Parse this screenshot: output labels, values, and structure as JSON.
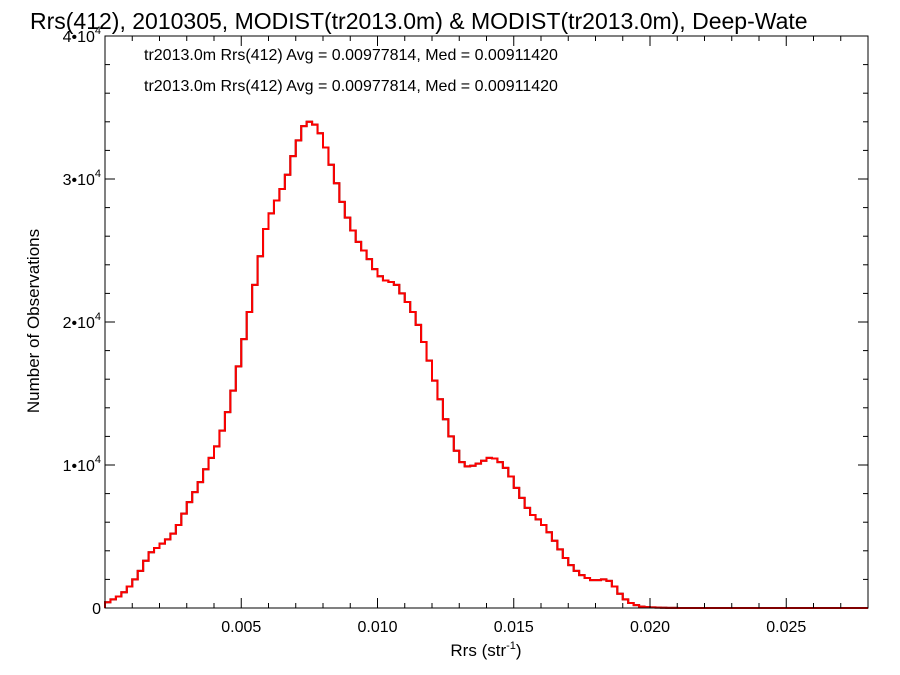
{
  "chart_data": {
    "type": "histogram",
    "title": "Rrs(412), 2010305, MODIST(tr2013.0m) & MODIST(tr2013.0m), Deep-Wate",
    "xlabel": "Rrs (str",
    "xlabel_sup": "-1",
    "xlabel_close": ")",
    "ylabel": "Number of Observations",
    "xlim": [
      0.0,
      0.028
    ],
    "ylim": [
      0,
      40000
    ],
    "x_ticks": [
      {
        "value": 0.005,
        "label": "0.005"
      },
      {
        "value": 0.01,
        "label": "0.010"
      },
      {
        "value": 0.015,
        "label": "0.015"
      },
      {
        "value": 0.02,
        "label": "0.020"
      },
      {
        "value": 0.025,
        "label": "0.025"
      }
    ],
    "y_ticks": [
      {
        "value": 0,
        "label": "0",
        "exp": ""
      },
      {
        "value": 10000,
        "label": "1•10",
        "exp": "4"
      },
      {
        "value": 20000,
        "label": "2•10",
        "exp": "4"
      },
      {
        "value": 30000,
        "label": "3•10",
        "exp": "4"
      },
      {
        "value": 40000,
        "label": "4•10",
        "exp": "4"
      }
    ],
    "annotations": [
      {
        "text": "tr2013.0m Rrs(412) Avg = 0.00977814, Med = 0.00911420",
        "color": "#000000"
      },
      {
        "text": "tr2013.0m Rrs(412) Avg = 0.00977814, Med = 0.00911420",
        "color": "#ff0000"
      }
    ],
    "bin_width": 0.0002,
    "series": [
      {
        "color": "#ff0000",
        "overlaid_color": "#000000",
        "x": [
          0.0,
          0.0002,
          0.0004,
          0.0006,
          0.0008,
          0.001,
          0.0012,
          0.0014,
          0.0016,
          0.0018,
          0.002,
          0.0022,
          0.0024,
          0.0026,
          0.0028,
          0.003,
          0.0032,
          0.0034,
          0.0036,
          0.0038,
          0.004,
          0.0042,
          0.0044,
          0.0046,
          0.0048,
          0.005,
          0.0052,
          0.0054,
          0.0056,
          0.0058,
          0.006,
          0.0062,
          0.0064,
          0.0066,
          0.0068,
          0.007,
          0.0072,
          0.0074,
          0.0076,
          0.0078,
          0.008,
          0.0082,
          0.0084,
          0.0086,
          0.0088,
          0.009,
          0.0092,
          0.0094,
          0.0096,
          0.0098,
          0.01,
          0.0102,
          0.0104,
          0.0106,
          0.0108,
          0.011,
          0.0112,
          0.0114,
          0.0116,
          0.0118,
          0.012,
          0.0122,
          0.0124,
          0.0126,
          0.0128,
          0.013,
          0.0132,
          0.0134,
          0.0136,
          0.0138,
          0.014,
          0.0142,
          0.0144,
          0.0146,
          0.0148,
          0.015,
          0.0152,
          0.0154,
          0.0156,
          0.0158,
          0.016,
          0.0162,
          0.0164,
          0.0166,
          0.0168,
          0.017,
          0.0172,
          0.0174,
          0.0176,
          0.0178,
          0.018,
          0.0182,
          0.0184,
          0.0186,
          0.0188,
          0.019,
          0.0192,
          0.0194,
          0.0196,
          0.0198,
          0.02,
          0.0202,
          0.0204,
          0.0206,
          0.0208,
          0.021,
          0.0212,
          0.0214,
          0.0216,
          0.0218,
          0.022,
          0.0222,
          0.0224,
          0.0226,
          0.0228,
          0.023,
          0.0232,
          0.0234,
          0.0236,
          0.0238,
          0.024,
          0.0242,
          0.0244,
          0.0246,
          0.0248,
          0.025,
          0.0252,
          0.0254,
          0.0256,
          0.0258,
          0.026,
          0.0262,
          0.0264,
          0.0266,
          0.0268,
          0.027,
          0.0272,
          0.0274,
          0.0276,
          0.0278
        ],
        "values": [
          400,
          600,
          800,
          1100,
          1500,
          2000,
          2600,
          3300,
          3900,
          4200,
          4500,
          4800,
          5200,
          5800,
          6600,
          7400,
          8100,
          8800,
          9700,
          10500,
          11300,
          12400,
          13700,
          15200,
          16900,
          18800,
          20700,
          22600,
          24600,
          26500,
          27600,
          28500,
          29300,
          30300,
          31600,
          32700,
          33700,
          34000,
          33800,
          33200,
          32200,
          31000,
          29700,
          28400,
          27300,
          26400,
          25600,
          25000,
          24400,
          23700,
          23200,
          22900,
          22800,
          22600,
          22000,
          21400,
          20700,
          19800,
          18600,
          17300,
          15900,
          14600,
          13200,
          12000,
          11000,
          10200,
          9900,
          9950,
          10100,
          10300,
          10500,
          10450,
          10200,
          9800,
          9200,
          8400,
          7700,
          7000,
          6500,
          6200,
          5800,
          5300,
          4700,
          4100,
          3500,
          3000,
          2600,
          2300,
          2100,
          1950,
          1950,
          2000,
          1900,
          1500,
          1000,
          600,
          350,
          200,
          100,
          60,
          40,
          25,
          15,
          10,
          5,
          0,
          0,
          0,
          0,
          0,
          0,
          0,
          0,
          0,
          0,
          0,
          0,
          0,
          0,
          0,
          0,
          0,
          0,
          0,
          0,
          0,
          0,
          0,
          0,
          0,
          0,
          0,
          0,
          0,
          0,
          0,
          0,
          0,
          0,
          0
        ]
      }
    ],
    "grid": false
  }
}
